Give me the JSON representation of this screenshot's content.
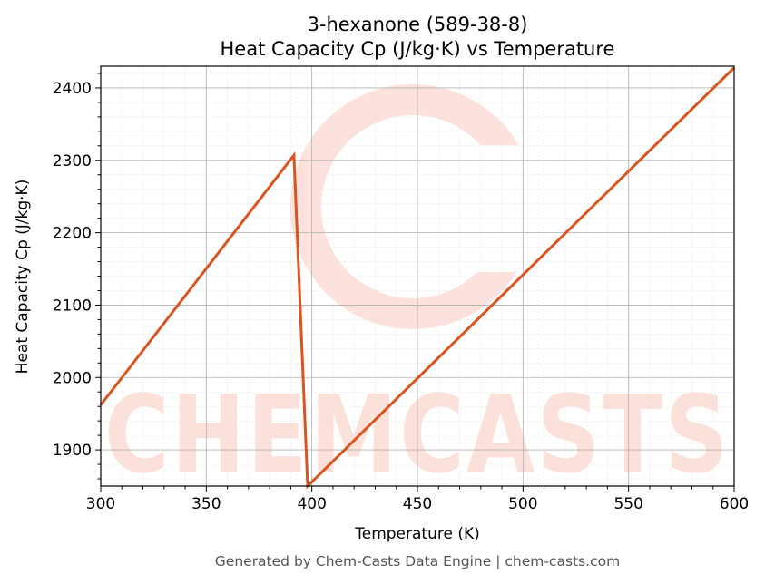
{
  "chart_data": {
    "type": "line",
    "title": "3-hexanone (589-38-8)",
    "subtitle": "Heat Capacity Cp (J/kg·K) vs Temperature",
    "xlabel": "Temperature (K)",
    "ylabel": "Heat Capacity Cp (J/kg·K)",
    "xlim": [
      300,
      600
    ],
    "ylim": [
      1850,
      2430
    ],
    "x_ticks": [
      300,
      350,
      400,
      450,
      500,
      550,
      600
    ],
    "y_ticks": [
      1900,
      2000,
      2100,
      2200,
      2300,
      2400
    ],
    "grid": true,
    "series": [
      {
        "color": "#d9541f",
        "x": [
          300,
          391.5,
          398,
          600
        ],
        "y": [
          1962,
          2307,
          1850,
          2428
        ]
      }
    ]
  },
  "watermark": {
    "text": "CHEMCASTS"
  },
  "footer": {
    "text": "Generated by Chem-Casts Data Engine | chem-casts.com"
  }
}
